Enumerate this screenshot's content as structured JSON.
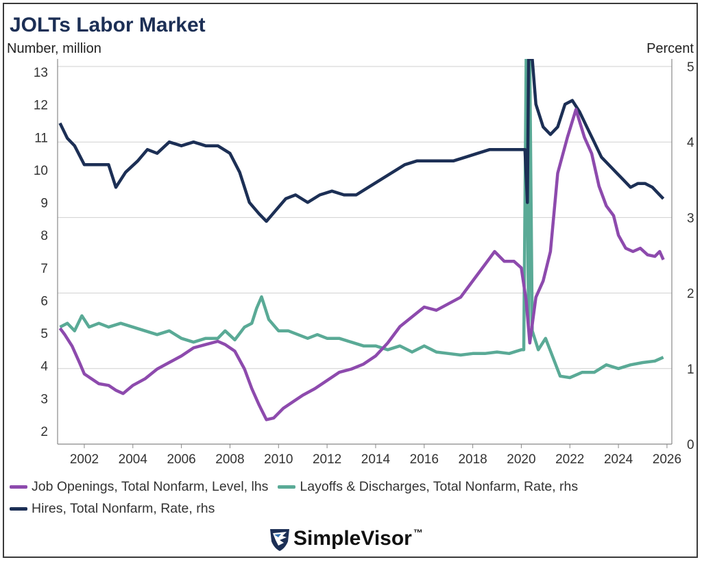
{
  "title": "JOLTs Labor Market",
  "left_axis_label": "Number, million",
  "right_axis_label": "Percent",
  "brand": {
    "name": "SimpleVisor",
    "tm": "™",
    "icon": "eagle-shield-logo"
  },
  "colors": {
    "openings": "#8d4aad",
    "layoffs": "#5aaa96",
    "hires": "#1c2f55"
  },
  "chart_data": {
    "type": "line",
    "title": "JOLTs Labor Market",
    "ylabel": "Number, million",
    "y2label": "Percent",
    "xlim": [
      2000.9,
      2026.2
    ],
    "ylim": [
      1.6,
      13.4
    ],
    "y2lim": [
      0,
      5.1
    ],
    "x_ticks": [
      "2002",
      "2004",
      "2006",
      "2008",
      "2010",
      "2012",
      "2014",
      "2016",
      "2018",
      "2020",
      "2022",
      "2024",
      "2026"
    ],
    "y_ticks": [
      "2",
      "3",
      "4",
      "5",
      "6",
      "7",
      "8",
      "9",
      "10",
      "11",
      "12",
      "13"
    ],
    "y2_ticks": [
      "0",
      "1",
      "2",
      "3",
      "4",
      "5"
    ],
    "grid": true,
    "legend_position": "bottom",
    "series": [
      {
        "name": "Job Openings, Total Nonfarm, Level, lhs",
        "axis": "left",
        "points": [
          [
            2001.0,
            5.15
          ],
          [
            2001.2,
            4.95
          ],
          [
            2001.5,
            4.6
          ],
          [
            2001.8,
            4.1
          ],
          [
            2002.0,
            3.75
          ],
          [
            2002.3,
            3.6
          ],
          [
            2002.6,
            3.45
          ],
          [
            2003.0,
            3.4
          ],
          [
            2003.3,
            3.25
          ],
          [
            2003.6,
            3.15
          ],
          [
            2004.0,
            3.4
          ],
          [
            2004.5,
            3.6
          ],
          [
            2005.0,
            3.9
          ],
          [
            2005.5,
            4.1
          ],
          [
            2006.0,
            4.3
          ],
          [
            2006.5,
            4.55
          ],
          [
            2007.0,
            4.65
          ],
          [
            2007.5,
            4.75
          ],
          [
            2007.8,
            4.65
          ],
          [
            2008.2,
            4.45
          ],
          [
            2008.6,
            3.9
          ],
          [
            2008.9,
            3.3
          ],
          [
            2009.2,
            2.8
          ],
          [
            2009.5,
            2.35
          ],
          [
            2009.8,
            2.4
          ],
          [
            2010.2,
            2.7
          ],
          [
            2010.6,
            2.9
          ],
          [
            2011.0,
            3.1
          ],
          [
            2011.5,
            3.3
          ],
          [
            2012.0,
            3.55
          ],
          [
            2012.5,
            3.8
          ],
          [
            2013.0,
            3.9
          ],
          [
            2013.5,
            4.05
          ],
          [
            2014.0,
            4.3
          ],
          [
            2014.5,
            4.7
          ],
          [
            2015.0,
            5.2
          ],
          [
            2015.5,
            5.5
          ],
          [
            2016.0,
            5.8
          ],
          [
            2016.5,
            5.7
          ],
          [
            2017.0,
            5.9
          ],
          [
            2017.5,
            6.1
          ],
          [
            2018.0,
            6.6
          ],
          [
            2018.5,
            7.1
          ],
          [
            2018.9,
            7.5
          ],
          [
            2019.3,
            7.2
          ],
          [
            2019.7,
            7.2
          ],
          [
            2020.0,
            7.0
          ],
          [
            2020.2,
            6.0
          ],
          [
            2020.35,
            4.7
          ],
          [
            2020.6,
            6.1
          ],
          [
            2020.9,
            6.6
          ],
          [
            2021.2,
            7.5
          ],
          [
            2021.5,
            9.9
          ],
          [
            2021.9,
            11.0
          ],
          [
            2022.25,
            11.85
          ],
          [
            2022.6,
            11.0
          ],
          [
            2022.9,
            10.5
          ],
          [
            2023.2,
            9.5
          ],
          [
            2023.5,
            8.9
          ],
          [
            2023.8,
            8.6
          ],
          [
            2024.0,
            8.0
          ],
          [
            2024.3,
            7.6
          ],
          [
            2024.6,
            7.5
          ],
          [
            2024.9,
            7.6
          ],
          [
            2025.2,
            7.4
          ],
          [
            2025.5,
            7.35
          ],
          [
            2025.7,
            7.5
          ],
          [
            2025.85,
            7.25
          ]
        ]
      },
      {
        "name": "Layoffs & Discharges, Total Nonfarm, Rate, rhs",
        "axis": "right",
        "points": [
          [
            2001.0,
            1.55
          ],
          [
            2001.3,
            1.6
          ],
          [
            2001.6,
            1.5
          ],
          [
            2001.9,
            1.7
          ],
          [
            2002.2,
            1.55
          ],
          [
            2002.6,
            1.6
          ],
          [
            2003.0,
            1.55
          ],
          [
            2003.5,
            1.6
          ],
          [
            2004.0,
            1.55
          ],
          [
            2004.5,
            1.5
          ],
          [
            2005.0,
            1.45
          ],
          [
            2005.5,
            1.5
          ],
          [
            2006.0,
            1.4
          ],
          [
            2006.5,
            1.35
          ],
          [
            2007.0,
            1.4
          ],
          [
            2007.5,
            1.4
          ],
          [
            2007.8,
            1.5
          ],
          [
            2008.2,
            1.38
          ],
          [
            2008.6,
            1.55
          ],
          [
            2008.9,
            1.6
          ],
          [
            2009.1,
            1.8
          ],
          [
            2009.3,
            1.95
          ],
          [
            2009.6,
            1.65
          ],
          [
            2010.0,
            1.5
          ],
          [
            2010.4,
            1.5
          ],
          [
            2010.8,
            1.45
          ],
          [
            2011.2,
            1.4
          ],
          [
            2011.6,
            1.45
          ],
          [
            2012.0,
            1.4
          ],
          [
            2012.5,
            1.4
          ],
          [
            2013.0,
            1.35
          ],
          [
            2013.5,
            1.3
          ],
          [
            2014.0,
            1.3
          ],
          [
            2014.5,
            1.25
          ],
          [
            2015.0,
            1.3
          ],
          [
            2015.5,
            1.22
          ],
          [
            2016.0,
            1.3
          ],
          [
            2016.5,
            1.22
          ],
          [
            2017.0,
            1.2
          ],
          [
            2017.5,
            1.18
          ],
          [
            2018.0,
            1.2
          ],
          [
            2018.5,
            1.2
          ],
          [
            2019.0,
            1.22
          ],
          [
            2019.5,
            1.2
          ],
          [
            2020.0,
            1.25
          ],
          [
            2020.1,
            1.25
          ],
          [
            2020.2,
            5.1
          ],
          [
            2020.3,
            1.55
          ],
          [
            2020.35,
            5.1
          ],
          [
            2020.45,
            1.5
          ],
          [
            2020.7,
            1.25
          ],
          [
            2021.0,
            1.4
          ],
          [
            2021.3,
            1.15
          ],
          [
            2021.6,
            0.9
          ],
          [
            2022.0,
            0.88
          ],
          [
            2022.5,
            0.95
          ],
          [
            2023.0,
            0.95
          ],
          [
            2023.5,
            1.05
          ],
          [
            2024.0,
            1.0
          ],
          [
            2024.5,
            1.05
          ],
          [
            2025.0,
            1.08
          ],
          [
            2025.5,
            1.1
          ],
          [
            2025.85,
            1.15
          ]
        ]
      },
      {
        "name": "Hires, Total Nonfarm, Rate, rhs",
        "axis": "right",
        "points": [
          [
            2001.0,
            4.25
          ],
          [
            2001.3,
            4.05
          ],
          [
            2001.6,
            3.95
          ],
          [
            2002.0,
            3.7
          ],
          [
            2002.5,
            3.7
          ],
          [
            2003.0,
            3.7
          ],
          [
            2003.3,
            3.4
          ],
          [
            2003.7,
            3.6
          ],
          [
            2004.2,
            3.75
          ],
          [
            2004.6,
            3.9
          ],
          [
            2005.0,
            3.85
          ],
          [
            2005.5,
            4.0
          ],
          [
            2006.0,
            3.95
          ],
          [
            2006.5,
            4.0
          ],
          [
            2007.0,
            3.95
          ],
          [
            2007.5,
            3.95
          ],
          [
            2008.0,
            3.85
          ],
          [
            2008.4,
            3.6
          ],
          [
            2008.8,
            3.2
          ],
          [
            2009.2,
            3.05
          ],
          [
            2009.5,
            2.95
          ],
          [
            2009.9,
            3.1
          ],
          [
            2010.3,
            3.25
          ],
          [
            2010.7,
            3.3
          ],
          [
            2011.2,
            3.2
          ],
          [
            2011.7,
            3.3
          ],
          [
            2012.2,
            3.35
          ],
          [
            2012.7,
            3.3
          ],
          [
            2013.2,
            3.3
          ],
          [
            2013.7,
            3.4
          ],
          [
            2014.2,
            3.5
          ],
          [
            2014.7,
            3.6
          ],
          [
            2015.2,
            3.7
          ],
          [
            2015.7,
            3.75
          ],
          [
            2016.2,
            3.75
          ],
          [
            2016.7,
            3.75
          ],
          [
            2017.2,
            3.75
          ],
          [
            2017.7,
            3.8
          ],
          [
            2018.2,
            3.85
          ],
          [
            2018.7,
            3.9
          ],
          [
            2019.2,
            3.9
          ],
          [
            2019.7,
            3.9
          ],
          [
            2020.0,
            3.9
          ],
          [
            2020.15,
            3.9
          ],
          [
            2020.25,
            3.2
          ],
          [
            2020.3,
            5.1
          ],
          [
            2020.45,
            5.1
          ],
          [
            2020.6,
            4.5
          ],
          [
            2020.9,
            4.2
          ],
          [
            2021.2,
            4.1
          ],
          [
            2021.5,
            4.2
          ],
          [
            2021.8,
            4.5
          ],
          [
            2022.1,
            4.55
          ],
          [
            2022.4,
            4.4
          ],
          [
            2022.7,
            4.2
          ],
          [
            2023.0,
            4.0
          ],
          [
            2023.3,
            3.8
          ],
          [
            2023.6,
            3.7
          ],
          [
            2023.9,
            3.6
          ],
          [
            2024.2,
            3.5
          ],
          [
            2024.5,
            3.4
          ],
          [
            2024.8,
            3.45
          ],
          [
            2025.1,
            3.45
          ],
          [
            2025.4,
            3.4
          ],
          [
            2025.7,
            3.3
          ],
          [
            2025.85,
            3.25
          ]
        ]
      }
    ]
  }
}
